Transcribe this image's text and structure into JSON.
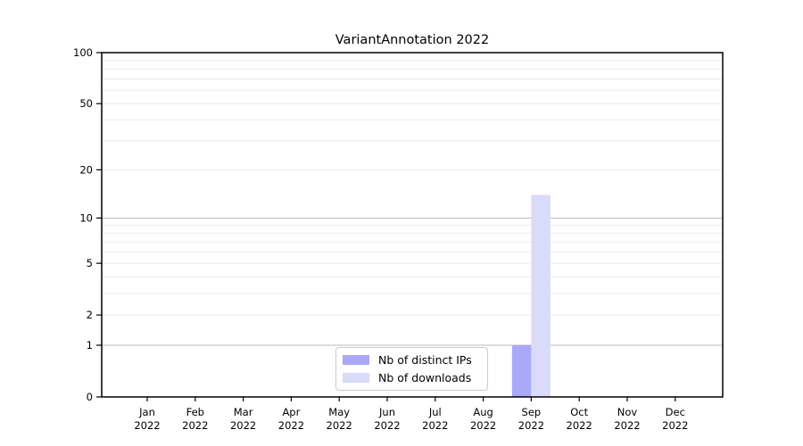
{
  "chart_data": {
    "type": "bar",
    "title": "VariantAnnotation 2022",
    "categories": [
      "Jan 2022",
      "Feb 2022",
      "Mar 2022",
      "Apr 2022",
      "May 2022",
      "Jun 2022",
      "Jul 2022",
      "Aug 2022",
      "Sep 2022",
      "Oct 2022",
      "Nov 2022",
      "Dec 2022"
    ],
    "series": [
      {
        "name": "Nb of distinct IPs",
        "color": "#a9a9f7",
        "values": [
          0,
          0,
          0,
          0,
          0,
          0,
          0,
          0,
          1,
          0,
          0,
          0
        ]
      },
      {
        "name": "Nb of downloads",
        "color": "#dadaf9",
        "values": [
          0,
          0,
          0,
          0,
          0,
          0,
          0,
          0,
          14,
          0,
          0,
          0
        ]
      }
    ],
    "xlabel": "",
    "ylabel": "",
    "y_scale": "log1p",
    "ylim": [
      0,
      100
    ],
    "y_ticks": [
      0,
      1,
      2,
      5,
      10,
      20,
      50,
      100
    ],
    "y_gridlines_major": [
      1,
      10,
      100
    ],
    "y_gridlines_minor": [
      2,
      3,
      4,
      5,
      6,
      7,
      8,
      9,
      20,
      30,
      40,
      50,
      60,
      70,
      80,
      90
    ],
    "grid": true,
    "legend_position": "lower center",
    "colors": {
      "grid_major": "#bbbbbb",
      "grid_minor": "#ebebeb",
      "spine": "#000000",
      "tick_label": "#000000"
    }
  }
}
